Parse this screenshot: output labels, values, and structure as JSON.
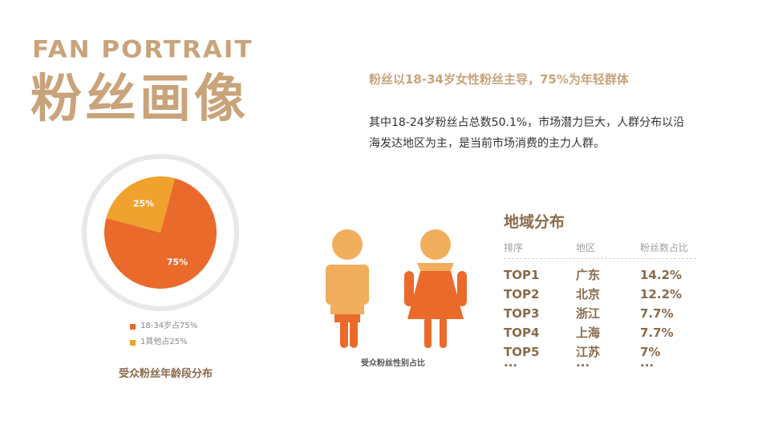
{
  "title_en": "FAN PORTRAIT",
  "title_cn": "粉丝画像",
  "headline": "粉丝以18-34岁女性粉丝主导，75%为年轻群体",
  "body_text": "其中18-24岁粉丝占总数50.1%，市场潜力巨大，人群分布以沿海发达地区为主，是当前市场消费的主力人群。",
  "colors": {
    "accent_tan": "#c9a37a",
    "orange": "#ea6a2b",
    "amber": "#efa22e",
    "figure_light": "#f1ae5c",
    "ring": "#e8e8e8"
  },
  "chart_data": {
    "type": "pie",
    "slices": [
      {
        "label": "75%",
        "value": 75,
        "color": "#ea6a2b"
      },
      {
        "label": "25%",
        "value": 25,
        "color": "#efa22e"
      }
    ],
    "legend": [
      "18-34岁占75%",
      "1其他占25%"
    ],
    "caption": "受众粉丝年龄段分布"
  },
  "gender": {
    "caption": "受众粉丝性别占比"
  },
  "region": {
    "title": "地域分布",
    "headers": [
      "排序",
      "地区",
      "粉丝数占比"
    ],
    "rows": [
      [
        "TOP1",
        "广东",
        "14.2%"
      ],
      [
        "TOP2",
        "北京",
        "12.2%"
      ],
      [
        "TOP3",
        "浙江",
        "7.7%"
      ],
      [
        "TOP4",
        "上海",
        "7.7%"
      ],
      [
        "TOP5",
        "江苏",
        "7%"
      ],
      [
        "···",
        "···",
        "···"
      ]
    ]
  }
}
